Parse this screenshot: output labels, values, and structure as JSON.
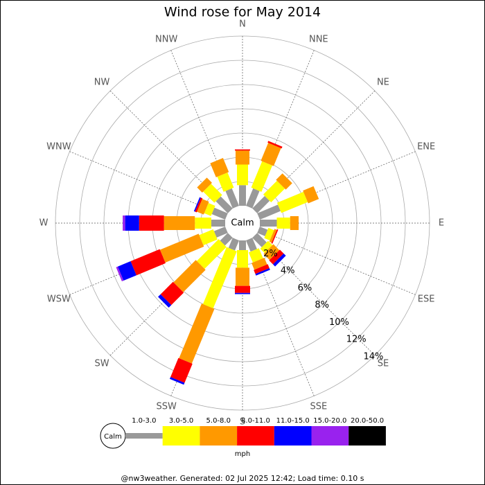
{
  "chart_data": {
    "type": "wind_rose",
    "title": "Wind rose for May 2014",
    "center_label": "Calm",
    "directions": [
      "N",
      "NNE",
      "NE",
      "ENE",
      "E",
      "ESE",
      "SE",
      "SSE",
      "S",
      "SSW",
      "SW",
      "WSW",
      "W",
      "WNW",
      "NW",
      "NNW"
    ],
    "series": [
      {
        "name": "1.0-3.0",
        "color": "#999999",
        "values": [
          1.7,
          1.55,
          1.45,
          1.85,
          1.4,
          0.7,
          1.1,
          1.0,
          0.8,
          0.9,
          0.9,
          1.0,
          1.15,
          1.2,
          1.4,
          1.55
        ]
      },
      {
        "name": "3.0-5.0",
        "color": "#ffff00",
        "values": [
          1.7,
          2.35,
          1.6,
          2.35,
          1.1,
          0.5,
          0.5,
          0.9,
          1.45,
          5.1,
          2.55,
          1.25,
          1.35,
          0.6,
          1.3,
          1.35
        ]
      },
      {
        "name": "5.0-8.0",
        "color": "#ff9900",
        "values": [
          1.15,
          1.6,
          0.75,
          0.95,
          0.7,
          0.2,
          0.7,
          0.6,
          1.5,
          4.87,
          2.6,
          3.45,
          2.55,
          0.6,
          0.6,
          1.25
        ]
      },
      {
        "name": "8.0-11.0",
        "color": "#ff0000",
        "values": [
          0.1,
          0.15,
          0,
          0,
          0,
          0.1,
          0.45,
          0.35,
          0.58,
          1.7,
          1.45,
          2.6,
          2.05,
          0.15,
          0,
          0
        ]
      },
      {
        "name": "11.0-15.0",
        "color": "#0000ff",
        "values": [
          0,
          0,
          0,
          0,
          0,
          0,
          0.25,
          0.15,
          0.1,
          0.17,
          0.3,
          1.15,
          1.15,
          0.1,
          0,
          0
        ]
      },
      {
        "name": "15.0-20.0",
        "color": "#9922ee",
        "values": [
          0,
          0,
          0,
          0,
          0,
          0,
          0,
          0,
          0,
          0,
          0,
          0.15,
          0.2,
          0,
          0,
          0
        ]
      },
      {
        "name": "20.0-50.0",
        "color": "#000000",
        "values": [
          0,
          0,
          0,
          0,
          0,
          0,
          0,
          0,
          0,
          0,
          0,
          0,
          0,
          0,
          0,
          0
        ]
      }
    ],
    "rlim": [
      0,
      14
    ],
    "rticks": [
      {
        "value": 2,
        "label": "2%"
      },
      {
        "value": 4,
        "label": "4%"
      },
      {
        "value": 6,
        "label": "6%"
      },
      {
        "value": 8,
        "label": "8%"
      },
      {
        "value": 10,
        "label": "10%"
      },
      {
        "value": 12,
        "label": "12%"
      },
      {
        "value": 14,
        "label": "14%"
      }
    ],
    "legend_unit": "mph"
  },
  "footer": "@nw3weather. Generated: 02 Jul 2025 12:42; Load time: 0.10 s"
}
